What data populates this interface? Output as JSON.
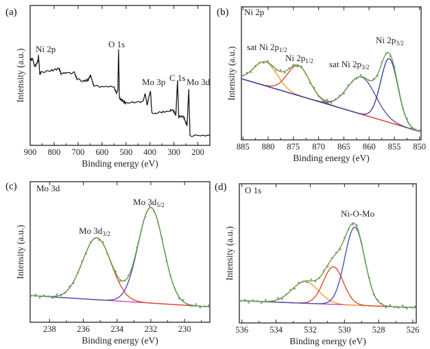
{
  "chart_data": [
    {
      "type": "line",
      "panel_label": "(a)",
      "element_label": "",
      "xlabel": "Binding energy (eV)",
      "ylabel": "Intensity (a.u.)",
      "xlim": [
        900,
        150
      ],
      "ylim": [
        0,
        100
      ],
      "xticks": [
        900,
        800,
        700,
        600,
        500,
        400,
        300,
        200
      ],
      "colors": {
        "line": "#1a1a1a"
      },
      "annotations": [
        {
          "main": "Ni 2p",
          "sub": ""
        },
        {
          "main": "O 1s",
          "sub": ""
        },
        {
          "main": "Mo 3p",
          "sub": ""
        },
        {
          "main": "C 1s",
          "sub": ""
        },
        {
          "main": "Mo 3d",
          "sub": ""
        }
      ],
      "series": [
        {
          "x": [
            900,
            890,
            880,
            868,
            865,
            860,
            855,
            820,
            780,
            770,
            740,
            715,
            705,
            680,
            660,
            648,
            635,
            600,
            550,
            540,
            534,
            531,
            528,
            526,
            515,
            500,
            430,
            420,
            412,
            398,
            392,
            360,
            320,
            305,
            292,
            285,
            280,
            260,
            245,
            238,
            233,
            200,
            150
          ],
          "y": [
            61,
            62,
            56,
            60,
            64,
            51,
            52,
            53,
            55,
            51,
            51.5,
            52,
            47.5,
            46,
            46.6,
            50,
            43,
            42,
            42,
            37,
            40,
            69,
            36,
            33,
            32,
            30,
            31,
            37,
            29,
            39,
            23,
            23.5,
            24.5,
            25.5,
            21.5,
            46,
            20.6,
            20.6,
            14,
            40,
            7,
            7,
            7
          ]
        }
      ]
    },
    {
      "type": "line",
      "panel_label": "(b)",
      "element_label": "Ni 2p",
      "xlabel": "Binding energy (eV)",
      "ylabel": "Intensity (a.u.)",
      "xlim": [
        885.3,
        849.7
      ],
      "ylim": [
        0,
        100
      ],
      "xticks": [
        885,
        880,
        875,
        870,
        865,
        860,
        855,
        850
      ],
      "background": [
        46,
        6
      ],
      "colors": {
        "envelope": "#5aa83c",
        "background": "#c23fb5",
        "points": "#8a8a8a"
      },
      "peaks": [
        {
          "label": {
            "main": "sat Ni 2p",
            "sub": "1/2"
          },
          "center": 880.5,
          "sigma": 2.3,
          "amplitude": 18,
          "color": "#f0963a"
        },
        {
          "label": {
            "main": "Ni 2p",
            "sub": "1/2"
          },
          "center": 874.0,
          "sigma": 2.2,
          "amplitude": 22.5,
          "color": "#e5482c"
        },
        {
          "label": {
            "main": "sat Ni 2p",
            "sub": "3/2"
          },
          "center": 861.5,
          "sigma": 2.8,
          "amplitude": 28,
          "color": "#4e4fae"
        },
        {
          "label": {
            "main": "Ni 2p",
            "sub": "3/2"
          },
          "center": 856.0,
          "sigma": 1.7,
          "amplitude": 48,
          "color": "#3d3f9e"
        }
      ]
    },
    {
      "type": "line",
      "panel_label": "(c)",
      "element_label": "Mo 3d",
      "xlabel": "Binding energy (eV)",
      "ylabel": "Intensity (a.u.)",
      "xlim": [
        239.15,
        228.5
      ],
      "ylim": [
        0,
        100
      ],
      "xticks": [
        238,
        236,
        234,
        232,
        230
      ],
      "background": [
        19,
        11
      ],
      "colors": {
        "envelope": "#5aa83c",
        "background": "#c23fb5",
        "points": "#8a8a8a"
      },
      "peaks": [
        {
          "label": {
            "main": "Mo 3d",
            "sub": "3/2"
          },
          "center": 235.2,
          "sigma": 0.85,
          "amplitude": 44,
          "color": "#e5482c"
        },
        {
          "label": {
            "main": "Mo 3d",
            "sub": "5/2"
          },
          "center": 232.0,
          "sigma": 0.75,
          "amplitude": 68,
          "color": "#4e4fae"
        }
      ]
    },
    {
      "type": "line",
      "panel_label": "(d)",
      "element_label": "O 1s",
      "xlabel": "Binding energy (eV)",
      "ylabel": "Intensity (a.u.)",
      "xlim": [
        536.15,
        525.8
      ],
      "ylim": [
        0,
        100
      ],
      "xticks": [
        536,
        534,
        532,
        530,
        528,
        526
      ],
      "background": [
        16,
        11
      ],
      "colors": {
        "envelope": "#5aa83c",
        "background": "#c23fb5",
        "points": "#8a8a8a"
      },
      "annotations": [
        {
          "main": "Ni-O-Mo",
          "sub": ""
        }
      ],
      "peaks": [
        {
          "center": 532.3,
          "sigma": 0.78,
          "amplitude": 15.5,
          "color": "#f0963a"
        },
        {
          "center": 530.65,
          "sigma": 0.58,
          "amplitude": 27,
          "color": "#e5482c"
        },
        {
          "center": 529.4,
          "sigma": 0.58,
          "amplitude": 56,
          "color": "#4e4fae"
        }
      ]
    }
  ]
}
